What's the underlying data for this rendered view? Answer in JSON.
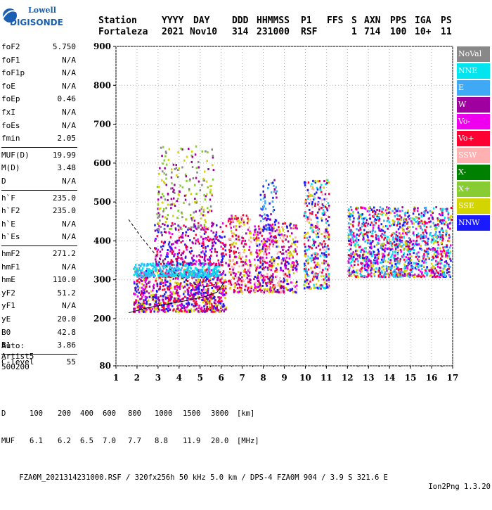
{
  "logo": {
    "line1": "Lowell",
    "line2": "DIGISONDE"
  },
  "header": {
    "labels": [
      "Station",
      "YYYY",
      "DAY",
      "DDD",
      "HHMMSS",
      "P1",
      "FFS",
      "S",
      "AXN",
      "PPS",
      "IGA",
      "PS"
    ],
    "values": [
      "Fortaleza",
      "2021",
      "Nov10",
      "314",
      "231000",
      "RSF",
      "",
      "1",
      "714",
      "100",
      "10+",
      "11"
    ]
  },
  "params_group1": [
    {
      "label": "foF2",
      "value": "5.750"
    },
    {
      "label": "foF1",
      "value": "N/A"
    },
    {
      "label": "foF1p",
      "value": "N/A"
    },
    {
      "label": "foE",
      "value": "N/A"
    },
    {
      "label": "foEp",
      "value": "0.46"
    },
    {
      "label": "fxI",
      "value": "N/A"
    },
    {
      "label": "foEs",
      "value": "N/A"
    },
    {
      "label": "fmin",
      "value": "2.05"
    }
  ],
  "params_group2": [
    {
      "label": "MUF(D)",
      "value": "19.99"
    },
    {
      "label": "M(D)",
      "value": "3.48"
    },
    {
      "label": "D",
      "value": "N/A"
    }
  ],
  "params_group3": [
    {
      "label": "h`F",
      "value": "235.0"
    },
    {
      "label": "h`F2",
      "value": "235.0"
    },
    {
      "label": "h`E",
      "value": "N/A"
    },
    {
      "label": "h`Es",
      "value": "N/A"
    }
  ],
  "params_group4": [
    {
      "label": "hmF2",
      "value": "271.2"
    },
    {
      "label": "hmF1",
      "value": "N/A"
    },
    {
      "label": "hmE",
      "value": "110.0"
    },
    {
      "label": "yF2",
      "value": "51.2"
    },
    {
      "label": "yF1",
      "value": "N/A"
    },
    {
      "label": "yE",
      "value": "20.0"
    },
    {
      "label": "B0",
      "value": "42.8"
    },
    {
      "label": "B1",
      "value": "3.86"
    }
  ],
  "params_group5": [
    {
      "label": "C-level",
      "value": "55"
    }
  ],
  "auto": {
    "line1": "Auto:",
    "line2": "Artist5",
    "line3": "500200"
  },
  "legend": [
    {
      "label": "NoVal",
      "color": "#888888"
    },
    {
      "label": "NNE",
      "color": "#00e5ee"
    },
    {
      "label": "E",
      "color": "#3fa9f5"
    },
    {
      "label": "W",
      "color": "#a000a0"
    },
    {
      "label": "Vo-",
      "color": "#ee00ee"
    },
    {
      "label": "Vo+",
      "color": "#ff0033"
    },
    {
      "label": "SSW",
      "color": "#ffb0b0"
    },
    {
      "label": "X-",
      "color": "#008000"
    },
    {
      "label": "X+",
      "color": "#88cc33"
    },
    {
      "label": "SSE",
      "color": "#d4d400"
    },
    {
      "label": "NNW",
      "color": "#1a1aff"
    }
  ],
  "footer": {
    "d_label": "D",
    "d_values": [
      "100",
      "200",
      "400",
      "600",
      "800",
      "1000",
      "1500",
      "3000",
      "[km]"
    ],
    "muf_label": "MUF",
    "muf_values": [
      "6.1",
      "6.2",
      "6.5",
      "7.0",
      "7.7",
      "8.8",
      "11.9",
      "20.0",
      "[MHz]"
    ],
    "info": "FZA0M_2021314231000.RSF / 320fx256h 50 kHz 5.0 km / DPS-4 FZA0M 904 / 3.9 S 321.6 E",
    "version": "Ion2Png 1.3.20"
  },
  "chart_data": {
    "type": "scatter",
    "x_ticks": [
      1,
      2,
      3,
      4,
      5,
      6,
      7,
      8,
      9,
      10,
      11,
      12,
      13,
      14,
      15,
      16,
      17
    ],
    "y_ticks": [
      80,
      200,
      300,
      400,
      500,
      600,
      700,
      800,
      900
    ],
    "xlim": [
      1,
      17
    ],
    "ylim": [
      80,
      900
    ],
    "grid": true,
    "legend_position": "right",
    "clusters": [
      {
        "x": [
          1.8,
          6.2
        ],
        "y": [
          220,
          330
        ],
        "colors": [
          "#ff0033",
          "#ee00ee",
          "#a000a0",
          "#d4d400",
          "#1a1aff"
        ],
        "n": 900
      },
      {
        "x": [
          1.8,
          5.9
        ],
        "y": [
          310,
          345
        ],
        "colors": [
          "#3fa9f5",
          "#00e5ee"
        ],
        "n": 350
      },
      {
        "x": [
          2.8,
          6.2
        ],
        "y": [
          340,
          450
        ],
        "colors": [
          "#a000a0",
          "#ee00ee",
          "#1a1aff",
          "#ff0033"
        ],
        "n": 320
      },
      {
        "x": [
          2.9,
          5.6
        ],
        "y": [
          430,
          650
        ],
        "colors": [
          "#d4d400",
          "#88cc33",
          "#888888",
          "#a000a0"
        ],
        "n": 220
      },
      {
        "x": [
          6.3,
          7.4
        ],
        "y": [
          270,
          470
        ],
        "colors": [
          "#ff0033",
          "#a000a0",
          "#ee00ee",
          "#ffb0b0",
          "#d4d400"
        ],
        "n": 260
      },
      {
        "x": [
          7.5,
          9.6
        ],
        "y": [
          270,
          450
        ],
        "colors": [
          "#ff0033",
          "#1a1aff",
          "#a000a0",
          "#ee00ee",
          "#d4d400",
          "#ffb0b0"
        ],
        "n": 500
      },
      {
        "x": [
          7.8,
          8.6
        ],
        "y": [
          430,
          560
        ],
        "colors": [
          "#1a1aff",
          "#a000a0",
          "#3fa9f5"
        ],
        "n": 70
      },
      {
        "x": [
          9.9,
          11.1
        ],
        "y": [
          280,
          560
        ],
        "colors": [
          "#ff0033",
          "#1a1aff",
          "#a000a0",
          "#d4d400",
          "#00e5ee",
          "#ffb0b0"
        ],
        "n": 380
      },
      {
        "x": [
          12.0,
          16.9
        ],
        "y": [
          310,
          490
        ],
        "colors": [
          "#3fa9f5",
          "#00e5ee",
          "#ee00ee",
          "#a000a0",
          "#1a1aff",
          "#ff0033",
          "#d4d400"
        ],
        "n": 1300
      }
    ],
    "trace": [
      [
        1.6,
        215
      ],
      [
        2.5,
        228
      ],
      [
        3.5,
        238
      ],
      [
        4.5,
        248
      ],
      [
        5.3,
        258
      ],
      [
        5.8,
        268
      ],
      [
        6.1,
        290
      ]
    ],
    "profile": [
      [
        1.6,
        455
      ],
      [
        2.2,
        410
      ],
      [
        2.8,
        370
      ],
      [
        3.4,
        335
      ],
      [
        4.0,
        308
      ],
      [
        4.6,
        290
      ],
      [
        5.2,
        282
      ],
      [
        5.7,
        288
      ]
    ]
  }
}
